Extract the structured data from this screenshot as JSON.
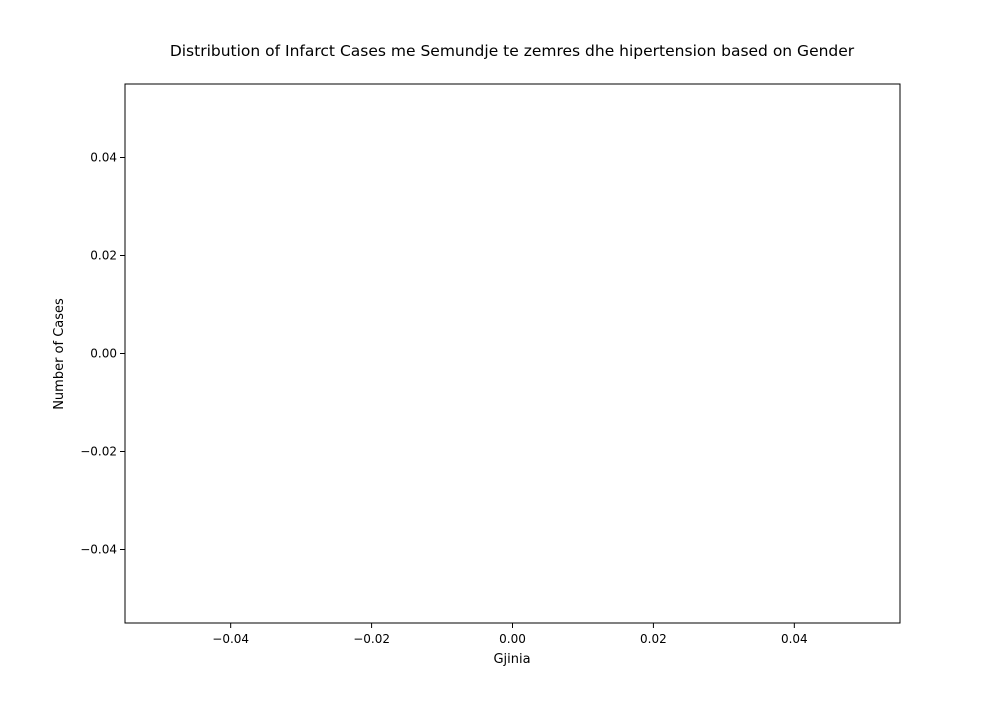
{
  "chart_data": {
    "type": "bar",
    "title": "Distribution of Infarct Cases me Semundje te zemres dhe hipertension based on Gender",
    "xlabel": "Gjinia",
    "ylabel": "Number of Cases",
    "categories": [],
    "series": [],
    "xlim": [
      -0.055,
      0.055
    ],
    "ylim": [
      -0.055,
      0.055
    ],
    "x_ticks": [
      -0.04,
      -0.02,
      0.0,
      0.02,
      0.04
    ],
    "x_tick_labels": [
      "−0.04",
      "−0.02",
      "0.00",
      "0.02",
      "0.04"
    ],
    "y_ticks": [
      0.04,
      0.02,
      0.0,
      -0.02,
      -0.04
    ],
    "y_tick_labels": [
      "0.04",
      "0.02",
      "0.00",
      "−0.02",
      "−0.04"
    ],
    "grid": false,
    "legend": "none"
  },
  "colors": {
    "background": "#ffffff",
    "axes": "#000000",
    "text": "#000000"
  }
}
